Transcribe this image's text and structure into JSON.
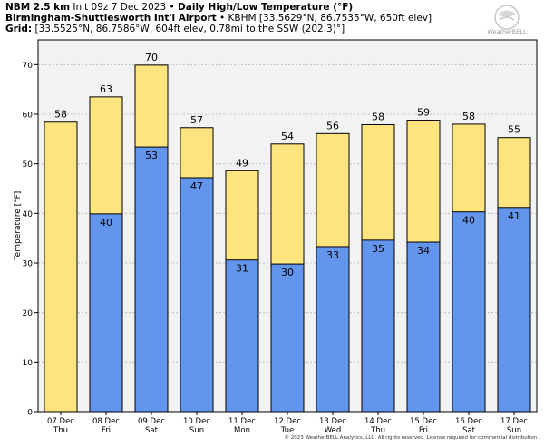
{
  "header": {
    "line1_bold": "NBM 2.5 km",
    "line1_init": "Init 09z 7 Dec 2023",
    "line1_sep": "•",
    "line1_title": "Daily High/Low Temperature (°F)",
    "line2_bold": "Birmingham-Shuttlesworth Int'l Airport",
    "line2_sep": "•",
    "line2_rest": "KBHM [33.5629°N, 86.7535°W, 650ft elev]",
    "line3_bold": "Grid:",
    "line3_rest": "[33.5525°N, 86.7586°W, 604ft elev, 0.78mi to the SSW (202.3)°]"
  },
  "logo_text": "WeatherBELL",
  "footer": "© 2023 WeatherBELL Analytics, LLC. All rights reserved. License required for commercial distribution.",
  "chart_data": {
    "type": "bar",
    "categories": [
      "07 Dec Thu",
      "08 Dec Fri",
      "09 Dec Sat",
      "10 Dec Sun",
      "11 Dec Mon",
      "12 Dec Tue",
      "13 Dec Wed",
      "14 Dec Thu",
      "15 Dec Fri",
      "16 Dec Sat",
      "17 Dec Sun"
    ],
    "category_dates": [
      "07 Dec",
      "08 Dec",
      "09 Dec",
      "10 Dec",
      "11 Dec",
      "12 Dec",
      "13 Dec",
      "14 Dec",
      "15 Dec",
      "16 Dec",
      "17 Dec"
    ],
    "category_days": [
      "Thu",
      "Fri",
      "Sat",
      "Sun",
      "Mon",
      "Tue",
      "Wed",
      "Thu",
      "Fri",
      "Sat",
      "Sun"
    ],
    "series": [
      {
        "name": "High",
        "color": "#fde47f",
        "values": [
          58.4,
          63.5,
          69.9,
          57.3,
          48.6,
          54.0,
          56.1,
          57.9,
          58.8,
          58.0,
          55.3
        ],
        "labels": [
          "58",
          "63",
          "70",
          "57",
          "49",
          "54",
          "56",
          "58",
          "59",
          "58",
          "55"
        ]
      },
      {
        "name": "Low",
        "color": "#6495ed",
        "values": [
          null,
          39.9,
          53.4,
          47.2,
          30.6,
          29.8,
          33.3,
          34.6,
          34.2,
          40.3,
          41.2
        ],
        "labels": [
          "",
          "40",
          "53",
          "47",
          "31",
          "30",
          "33",
          "35",
          "34",
          "40",
          "41"
        ]
      }
    ],
    "ylabel": "Temperature [°F]",
    "ylim": [
      0,
      75
    ],
    "yticks": [
      0,
      10,
      20,
      30,
      40,
      50,
      60,
      70
    ],
    "grid": true,
    "background": "#f2f2f2",
    "legend": "none"
  }
}
